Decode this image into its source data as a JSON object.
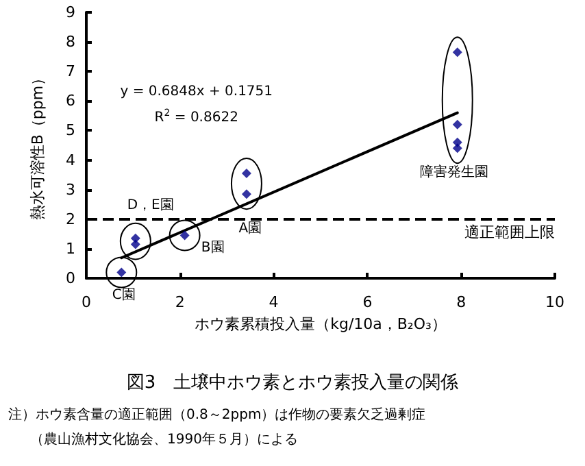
{
  "chart_data": {
    "type": "scatter",
    "title": "図3　土壌中ホウ素とホウ素投入量の関係",
    "xlabel": "ホウ素累積投入量（kg/10a，B₂O₃）",
    "ylabel": "熱水可溶性B（ppm）",
    "xlim": [
      0,
      10
    ],
    "xticks": [
      0,
      2,
      4,
      6,
      8,
      10
    ],
    "ylim": [
      0,
      9
    ],
    "yticks": [
      0,
      1,
      2,
      3,
      4,
      5,
      6,
      7,
      8,
      9
    ],
    "grid": false,
    "marker": "diamond",
    "series": [
      {
        "color": "#00008b",
        "x": [
          0.75,
          1.05,
          1.05,
          2.1,
          3.42,
          3.42,
          7.92,
          7.92,
          7.92,
          7.92
        ],
        "values": [
          0.2,
          1.35,
          1.15,
          1.45,
          3.55,
          2.85,
          7.65,
          5.2,
          4.6,
          4.4
        ]
      },
      {
        "type": "line",
        "color": "#000000",
        "marker": "none",
        "line_style": "solid",
        "x": [
          0.75,
          7.92
        ],
        "values": [
          0.69,
          5.6
        ]
      }
    ],
    "ref_lines": [
      {
        "axis": "y",
        "value": 2,
        "label": "適正範囲上限",
        "color": "#000000",
        "line_style": "dashed"
      }
    ],
    "annotations": [
      "y = 0.6848x + 0.1751",
      "R$^{2}$ = 0.8622",
      "D，E園",
      "A園",
      "B園",
      "C園",
      "障害発生園",
      "注）ホウ素含量の適正範囲（0.8～2ppm）は作物の要素欠乏過剰症",
      "（農山漁村文化協会、1990年５月）による"
    ]
  }
}
